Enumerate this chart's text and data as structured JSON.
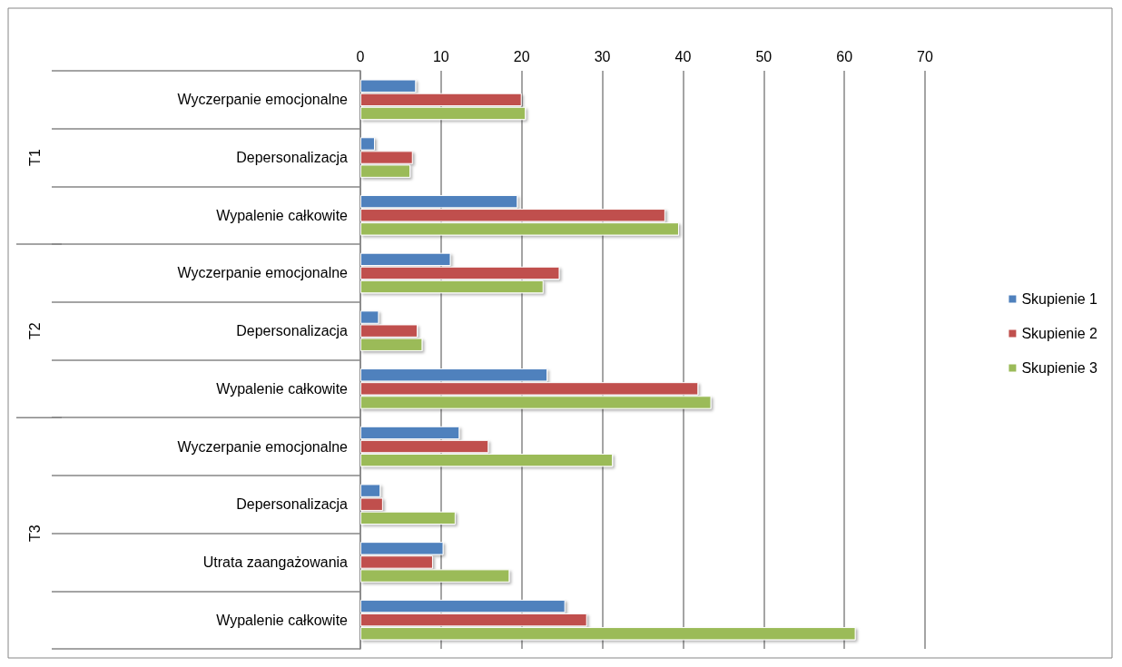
{
  "chart_data": {
    "type": "bar",
    "orientation": "horizontal",
    "categories": [
      "Wyczerpanie emocjonalne",
      "Depersonalizacja",
      "Wypalenie całkowite",
      "Wyczerpanie emocjonalne",
      "Depersonalizacja",
      "Wypalenie całkowite",
      "Wyczerpanie emocjonalne",
      "Depersonalizacja",
      "Utrata zaangażowania",
      "Wypalenie całkowite"
    ],
    "series": [
      {
        "name": "Skupienie 1",
        "color": "#4f81bd",
        "values": [
          6.9,
          1.8,
          19.5,
          11.2,
          2.3,
          23.2,
          12.3,
          2.5,
          10.3,
          25.4
        ]
      },
      {
        "name": "Skupienie 2",
        "color": "#c0504d",
        "values": [
          20.0,
          6.5,
          37.8,
          24.7,
          7.1,
          41.9,
          15.9,
          2.8,
          9.0,
          28.1
        ]
      },
      {
        "name": "Skupienie 3",
        "color": "#9bbb59",
        "values": [
          20.5,
          6.2,
          39.5,
          22.7,
          7.7,
          43.5,
          31.3,
          11.8,
          18.5,
          61.4
        ]
      }
    ],
    "annotations": [
      "T1",
      "T2",
      "T3"
    ],
    "xlim": [
      0,
      70
    ],
    "xticks": [
      0,
      10,
      20,
      30,
      40,
      50,
      60,
      70
    ],
    "grid": "x",
    "legend": "right"
  }
}
